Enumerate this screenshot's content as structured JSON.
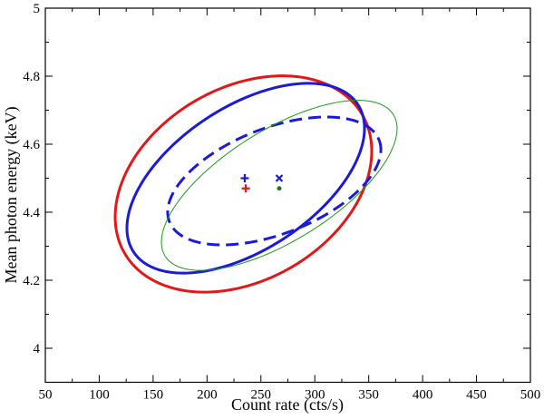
{
  "chart_data": {
    "type": "ellipse-scatter",
    "xlabel": "Count rate (cts/s)",
    "ylabel": "Mean photon energy (keV)",
    "xlim": [
      50,
      500
    ],
    "xticks": [
      50,
      100,
      150,
      200,
      250,
      300,
      350,
      400,
      450,
      500
    ],
    "ylim": [
      3.9,
      5
    ],
    "yticks": [
      4,
      4.2,
      4.4,
      4.6,
      4.8,
      5
    ],
    "ellipses": [
      {
        "color": "#e01818",
        "style": "solid",
        "width": 3,
        "center_x": 233.8,
        "center_y": 4.483,
        "half_width": 119,
        "half_height": 0.318,
        "x_at_top": 270
      },
      {
        "color": "#1a1ad8",
        "style": "solid",
        "width": 3,
        "center_x": 235.9,
        "center_y": 4.5,
        "half_width": 110.2,
        "half_height": 0.279,
        "x_at_top": 293.9
      },
      {
        "color": "#1a1ad8",
        "style": "dashed",
        "width": 3,
        "center_x": 262.4,
        "center_y": 4.492,
        "half_width": 98.9,
        "half_height": 0.188,
        "x_at_top": 310.7
      },
      {
        "color": "#1a9a1a",
        "style": "solid",
        "width": 1,
        "center_x": 267,
        "center_y": 4.479,
        "half_width": 109.3,
        "half_height": 0.25,
        "x_at_top": 340
      }
    ],
    "points": [
      {
        "x": 235,
        "y": 4.5,
        "marker": "plus",
        "color": "#1a1ad8"
      },
      {
        "x": 236,
        "y": 4.47,
        "marker": "plus",
        "color": "#e01818"
      },
      {
        "x": 267,
        "y": 4.5,
        "marker": "cross",
        "color": "#1a1ad8"
      },
      {
        "x": 267,
        "y": 4.47,
        "marker": "dot",
        "color": "#1a7a1a"
      }
    ]
  }
}
